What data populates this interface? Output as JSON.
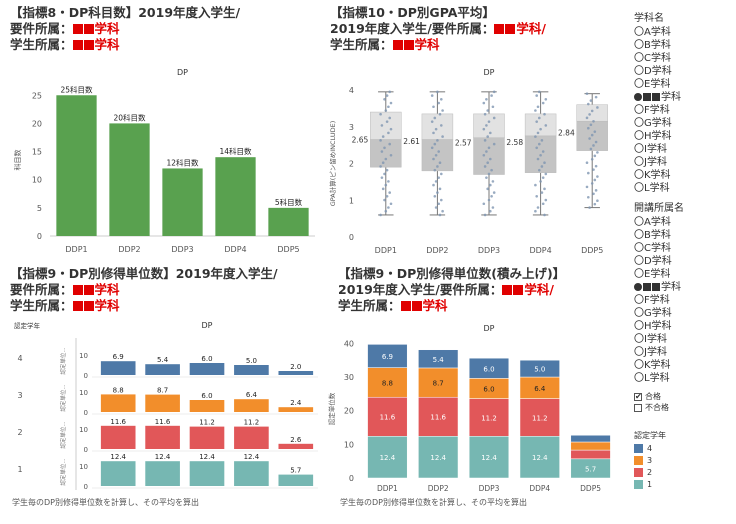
{
  "q1": {
    "l1": "【指標8・DP科目数】2019年度入学生/",
    "l2a": "要件所属：",
    "l2b": "学科",
    "l3a": "学生所属：",
    "l3b": "学科"
  },
  "q2": {
    "l1": "【指標10・DP別GPA平均】",
    "l2a": "2019年度入学生/要件所属：",
    "l2b": "学科/",
    "l3a": "学生所属：",
    "l3b": "学科"
  },
  "q3": {
    "l1": "【指標9・DP別修得単位数】2019年度入学生/",
    "l2a": "要件所属：",
    "l2b": "学科",
    "l3a": "学生所属：",
    "l3b": "学科"
  },
  "q4": {
    "l1": "【指標9・DP別修得単位数(積み上げ)】",
    "l2a": "2019年度入学生/要件所属：",
    "l2b": "学科/",
    "l3a": "学生所属：",
    "l3b": "学科"
  },
  "sidebar": {
    "filter1_title": "学科名",
    "filter1": [
      "〇A学科",
      "〇B学科",
      "〇C学科",
      "〇D学科",
      "〇E学科",
      "●■■学科",
      "〇F学科",
      "〇G学科",
      "〇H学科",
      "〇I学科",
      "〇J学科",
      "〇K学科",
      "〇L学科"
    ],
    "filter2_title": "開講所属名",
    "filter2": [
      "〇A学科",
      "〇B学科",
      "〇C学科",
      "〇D学科",
      "〇E学科",
      "●■■学科",
      "〇F学科",
      "〇G学科",
      "〇H学科",
      "〇I学科",
      "〇J学科",
      "〇K学科",
      "〇L学科"
    ],
    "pass_label": "合格",
    "fail_label": "不合格",
    "legend_title": "認定学年",
    "legend": [
      "4",
      "3",
      "2",
      "1"
    ]
  },
  "colors": {
    "green": "#59a14f",
    "y1": "#76b7b2",
    "y2": "#e15759",
    "y3": "#f28e2b",
    "y4": "#4e79a7",
    "red": "#e00000"
  },
  "notes": {
    "n3": "学生毎のDP別修得単位数を計算し、その平均を算出",
    "n4": "学生毎のDP別修得単位数を計算し、その平均を算出"
  },
  "chart_data": [
    {
      "type": "bar",
      "title": "DP",
      "categories": [
        "DDP1",
        "DDP2",
        "DDP3",
        "DDP4",
        "DDP5"
      ],
      "values": [
        25,
        20,
        12,
        14,
        5
      ],
      "data_labels": [
        "25科目数",
        "20科目数",
        "12科目数",
        "14科目数",
        "5科目数"
      ],
      "ylabel": "科目数",
      "ylim": [
        0,
        27
      ],
      "yticks": [
        0,
        5,
        10,
        15,
        20,
        25
      ]
    },
    {
      "type": "box",
      "title": "DP",
      "categories": [
        "DDP1",
        "DDP2",
        "DDP3",
        "DDP4",
        "DDP5"
      ],
      "values": [
        2.65,
        2.61,
        2.57,
        2.58,
        2.84
      ],
      "ylabel": "GPA計算(ピン留めINCLUDE)",
      "ylim": [
        0,
        4
      ],
      "yticks": [
        0,
        1,
        2,
        3,
        4
      ],
      "boxes": [
        {
          "min": 0.6,
          "q1": 1.9,
          "median": 2.65,
          "q3": 3.4,
          "max": 3.95
        },
        {
          "min": 0.6,
          "q1": 1.8,
          "median": 2.65,
          "q3": 3.35,
          "max": 3.95
        },
        {
          "min": 0.6,
          "q1": 1.7,
          "median": 2.7,
          "q3": 3.35,
          "max": 3.95
        },
        {
          "min": 0.6,
          "q1": 1.75,
          "median": 2.75,
          "q3": 3.35,
          "max": 3.95
        },
        {
          "min": 0.8,
          "q1": 2.35,
          "median": 3.15,
          "q3": 3.6,
          "max": 3.9
        }
      ]
    },
    {
      "type": "bar",
      "title": "DP",
      "row_header": "認定学年",
      "row_axis_label": "認定単位...",
      "categories": [
        "DDP1",
        "DDP2",
        "DDP3",
        "DDP4",
        "DDP5"
      ],
      "yticks": [
        0,
        10
      ],
      "rows": [
        {
          "name": "4",
          "values": [
            6.9,
            5.4,
            6.0,
            5.0,
            2.0
          ]
        },
        {
          "name": "3",
          "values": [
            8.8,
            8.7,
            6.0,
            6.4,
            2.4
          ]
        },
        {
          "name": "2",
          "values": [
            11.6,
            11.6,
            11.2,
            11.2,
            2.6
          ]
        },
        {
          "name": "1",
          "values": [
            12.4,
            12.4,
            12.4,
            12.4,
            5.7
          ]
        }
      ]
    },
    {
      "type": "bar",
      "stacked": true,
      "title": "DP",
      "ylabel": "認定単位数",
      "categories": [
        "DDP1",
        "DDP2",
        "DDP3",
        "DDP4",
        "DDP5"
      ],
      "ylim": [
        0,
        41
      ],
      "yticks": [
        0,
        10,
        20,
        30,
        40
      ],
      "series": [
        {
          "name": "1",
          "values": [
            12.4,
            12.4,
            12.4,
            12.4,
            5.7
          ]
        },
        {
          "name": "2",
          "values": [
            11.6,
            11.6,
            11.2,
            11.2,
            2.6
          ]
        },
        {
          "name": "3",
          "values": [
            8.8,
            8.7,
            6.0,
            6.4,
            2.4
          ]
        },
        {
          "name": "4",
          "values": [
            6.9,
            5.4,
            6.0,
            5.0,
            2.0
          ]
        }
      ]
    }
  ]
}
